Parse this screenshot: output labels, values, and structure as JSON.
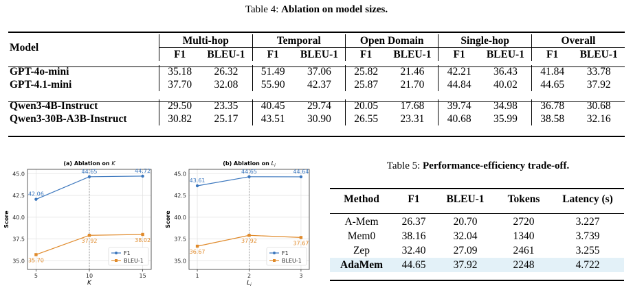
{
  "table4": {
    "caption_prefix": "Table 4: ",
    "caption_bold": "Ablation on model sizes.",
    "model_header": "Model",
    "groups": [
      "Multi-hop",
      "Temporal",
      "Open Domain",
      "Single-hop",
      "Overall"
    ],
    "subheaders": [
      "F1",
      "BLEU-1"
    ],
    "rows": [
      {
        "model": "GPT-4o-mini",
        "values": [
          "35.18",
          "26.32",
          "51.49",
          "37.06",
          "25.82",
          "21.46",
          "42.21",
          "36.43",
          "41.84",
          "33.78"
        ]
      },
      {
        "model": "GPT-4.1-mini",
        "values": [
          "37.70",
          "32.08",
          "55.90",
          "42.37",
          "25.87",
          "21.70",
          "44.84",
          "40.02",
          "44.65",
          "37.92"
        ]
      },
      {
        "model": "Qwen3-4B-Instruct",
        "values": [
          "29.50",
          "23.35",
          "40.45",
          "29.74",
          "20.05",
          "17.68",
          "39.74",
          "34.98",
          "36.78",
          "30.68"
        ]
      },
      {
        "model": "Qwen3-30B-A3B-Instruct",
        "values": [
          "30.82",
          "25.17",
          "43.51",
          "30.90",
          "26.55",
          "23.31",
          "40.68",
          "35.99",
          "38.58",
          "32.16"
        ]
      }
    ]
  },
  "table5": {
    "caption_prefix": "Table 5: ",
    "caption_bold": "Performance-efficiency trade-off.",
    "headers": [
      "Method",
      "F1",
      "BLEU-1",
      "Tokens",
      "Latency (s)"
    ],
    "rows": [
      [
        "A-Mem",
        "26.37",
        "20.70",
        "2720",
        "3.227"
      ],
      [
        "Mem0",
        "38.16",
        "32.04",
        "1340",
        "3.739"
      ],
      [
        "Zep",
        "32.40",
        "27.09",
        "2461",
        "3.255"
      ],
      [
        "AdaMem",
        "44.65",
        "37.92",
        "2248",
        "4.722"
      ]
    ],
    "highlight_color": "#e3f1f8"
  },
  "chart_data": [
    {
      "type": "line",
      "title": "(a) Ablation on K",
      "xlabel": "K",
      "ylabel": "Score",
      "x": [
        5,
        10,
        15
      ],
      "xticks": [
        "5",
        "10",
        "15"
      ],
      "yticks": [
        "35.0",
        "37.5",
        "40.0",
        "42.5",
        "45.0"
      ],
      "ylim": [
        34.0,
        45.5
      ],
      "grid": true,
      "highlight_x": 10,
      "legend": "lower-right",
      "series": [
        {
          "name": "F1",
          "color": "#3a76bd",
          "values": [
            42.06,
            44.65,
            44.72
          ],
          "labels": [
            "42.06",
            "44.65",
            "44.72"
          ]
        },
        {
          "name": "BLEU-1",
          "color": "#e08a2a",
          "values": [
            35.7,
            37.92,
            38.02
          ],
          "labels": [
            "35.70",
            "37.92",
            "38.02"
          ]
        }
      ]
    },
    {
      "type": "line",
      "title": "(b) Ablation on Li",
      "xlabel": "Li",
      "ylabel": "Score",
      "x": [
        1,
        2,
        3
      ],
      "xticks": [
        "1",
        "2",
        "3"
      ],
      "yticks": [
        "35.0",
        "37.5",
        "40.0",
        "42.5",
        "45.0"
      ],
      "ylim": [
        34.0,
        45.5
      ],
      "grid": true,
      "highlight_x": 2,
      "legend": "lower-right",
      "series": [
        {
          "name": "F1",
          "color": "#3a76bd",
          "values": [
            43.61,
            44.65,
            44.64
          ],
          "labels": [
            "43.61",
            "44.65",
            "44.64"
          ]
        },
        {
          "name": "BLEU-1",
          "color": "#e08a2a",
          "values": [
            36.67,
            37.92,
            37.67
          ],
          "labels": [
            "36.67",
            "37.92",
            "37.67"
          ]
        }
      ]
    }
  ]
}
